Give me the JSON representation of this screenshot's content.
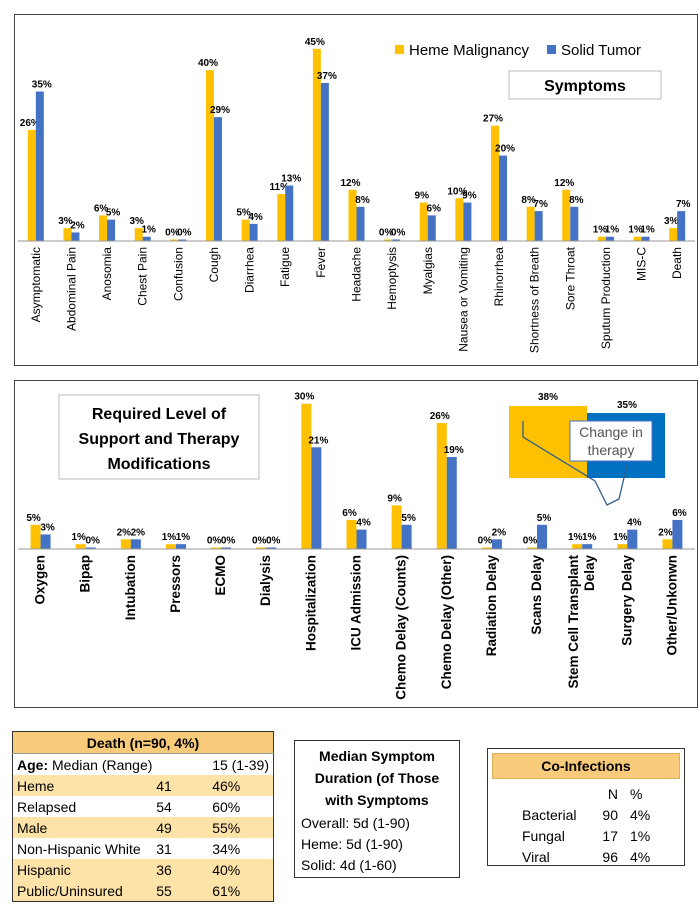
{
  "colors": {
    "heme": "#FFC000",
    "solid": "#4472C4"
  },
  "legend": {
    "heme": "Heme Malignancy",
    "solid": "Solid Tumor"
  },
  "chart_data": [
    {
      "type": "bar",
      "title": "Symptoms",
      "categories": [
        "Asymptomatic",
        "Abdominal Pain",
        "Anosomia",
        "Chest Pain",
        "Confusion",
        "Cough",
        "Diarrhea",
        "Fatigue",
        "Fever",
        "Headache",
        "Hemoptysis",
        "Myalgias",
        "Nausea or Vomiting",
        "Rhinorrhea",
        "Shortness of Breath",
        "Sore Throat",
        "Sputum Production",
        "MIS-C",
        "Death"
      ],
      "series": [
        {
          "name": "Heme Malignancy",
          "values": [
            26,
            3,
            6,
            3,
            0,
            40,
            5,
            11,
            45,
            12,
            0,
            9,
            10,
            27,
            8,
            12,
            1,
            1,
            3
          ],
          "labels": [
            "26%",
            "3%",
            "6%",
            "3%",
            "0%",
            "40%",
            "5%",
            "11%",
            "45%",
            "12%",
            "0%",
            "9%",
            "10%",
            "27%",
            "8%",
            "12%",
            "1%",
            "1%",
            "3%"
          ]
        },
        {
          "name": "Solid Tumor",
          "values": [
            35,
            2,
            5,
            1,
            0,
            29,
            4,
            13,
            37,
            8,
            0,
            6,
            9,
            20,
            7,
            8,
            1,
            1,
            7
          ],
          "labels": [
            "35%",
            "2%",
            "5%",
            "1%",
            "0%",
            "29%",
            "4%",
            "13%",
            "37%",
            "8%",
            "0%",
            "6%",
            "9%",
            "20%",
            "7%",
            "8%",
            "1%",
            "1%",
            "7%"
          ]
        }
      ],
      "ylim": [
        0,
        48
      ]
    },
    {
      "type": "bar",
      "title": "Required Level of Support and Therapy Modifications",
      "title_lines": [
        "Required Level of",
        "Support and Therapy",
        "Modifications"
      ],
      "categories": [
        "Oxygen",
        "Bipap",
        "Intubation",
        "Pressors",
        "ECMO",
        "Dialysis",
        "Hospitalization",
        "ICU Admission",
        "Chemo Delay (Counts)",
        "Chemo Delay (Other)",
        "Radiation Delay",
        "Scans Delay",
        "Stem Cell Transplant Delay",
        "Surgery Delay",
        "Other/Unkonwn"
      ],
      "category_lines": [
        [
          "Oxygen"
        ],
        [
          "Bipap"
        ],
        [
          "Intubation"
        ],
        [
          "Pressors"
        ],
        [
          "ECMO"
        ],
        [
          "Dialysis"
        ],
        [
          "Hospitalization"
        ],
        [
          "ICU Admission"
        ],
        [
          "Chemo Delay (Counts)"
        ],
        [
          "Chemo Delay (Other)"
        ],
        [
          "Radiation Delay"
        ],
        [
          "Scans Delay"
        ],
        [
          "Stem Cell Transplant",
          "Delay"
        ],
        [
          "Surgery Delay"
        ],
        [
          "Other/Unkonwn"
        ]
      ],
      "series": [
        {
          "name": "Heme Malignancy",
          "values": [
            5,
            1,
            2,
            1,
            0,
            0,
            30,
            6,
            9,
            26,
            0,
            0,
            1,
            1,
            2
          ],
          "labels": [
            "5%",
            "1%",
            "2%",
            "1%",
            "0%",
            "0%",
            "30%",
            "6%",
            "9%",
            "26%",
            "0%",
            "0%",
            "1%",
            "1%",
            "2%"
          ]
        },
        {
          "name": "Solid Tumor",
          "values": [
            3,
            0,
            2,
            1,
            0,
            0,
            21,
            4,
            5,
            19,
            2,
            5,
            1,
            4,
            6
          ],
          "labels": [
            "3%",
            "0%",
            "2%",
            "1%",
            "0%",
            "0%",
            "21%",
            "4%",
            "5%",
            "19%",
            "2%",
            "5%",
            "1%",
            "4%",
            "6%"
          ]
        }
      ],
      "ylim": [
        0,
        32
      ],
      "callout": {
        "text_lines": [
          "Change in",
          "therapy"
        ],
        "heme_value": 38,
        "heme_label": "38%",
        "solid_value": 35,
        "solid_label": "35%"
      }
    }
  ],
  "death_table": {
    "header": "Death  (n=90, 4%)",
    "age_label": "Age:",
    "age_text": "Median (Range)",
    "age_value": "15 (1-39)",
    "rows": [
      {
        "label": "Heme",
        "n": "41",
        "pct": "46%"
      },
      {
        "label": "Relapsed",
        "n": "54",
        "pct": "60%"
      },
      {
        "label": "Male",
        "n": "49",
        "pct": "55%"
      },
      {
        "label": "Non-Hispanic White",
        "n": "31",
        "pct": "34%"
      },
      {
        "label": "Hispanic",
        "n": "36",
        "pct": "40%"
      },
      {
        "label": "Public/Uninsured",
        "n": "55",
        "pct": "61%"
      }
    ]
  },
  "median_box": {
    "title_lines": [
      "Median Symptom",
      "Duration (of Those",
      "with Symptoms"
    ],
    "lines": [
      "Overall: 5d (1-90)",
      "Heme: 5d (1-90)",
      "Solid: 4d (1-60)"
    ]
  },
  "coinfections": {
    "title": "Co-Infections",
    "col_n": "N",
    "col_pct": "%",
    "rows": [
      {
        "label": "Bacterial",
        "n": "90",
        "pct": "4%"
      },
      {
        "label": "Fungal",
        "n": "17",
        "pct": "1%"
      },
      {
        "label": "Viral",
        "n": "96",
        "pct": "4%"
      }
    ]
  }
}
